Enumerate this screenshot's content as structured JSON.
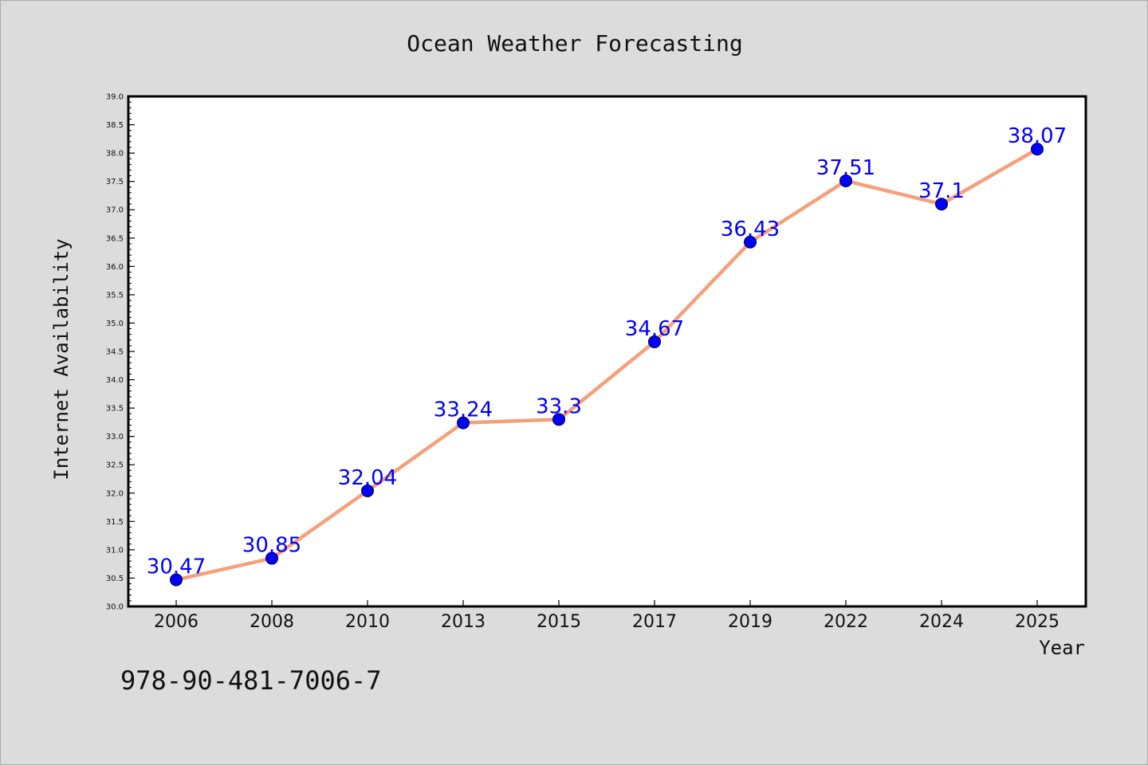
{
  "chart_data": {
    "type": "line",
    "title": "Ocean Weather Forecasting",
    "xlabel": "Year",
    "ylabel": "Internet Availability",
    "categories": [
      "2006",
      "2008",
      "2010",
      "2013",
      "2015",
      "2017",
      "2019",
      "2022",
      "2024",
      "2025"
    ],
    "series": [
      {
        "values": [
          30.47,
          30.85,
          32.04,
          33.24,
          33.3,
          34.67,
          36.43,
          37.51,
          37.1,
          38.07
        ],
        "line_color": "#f5a07a",
        "marker_color": "#0000ff"
      }
    ],
    "data_labels": [
      "30.47",
      "30.85",
      "32.04",
      "33.24",
      "33.3",
      "34.67",
      "36.43",
      "37.51",
      "37.1",
      "38.07"
    ],
    "ylim": [
      30.0,
      39.0
    ],
    "yticks": [
      "30.0",
      "30.5",
      "31.0",
      "31.5",
      "32.0",
      "32.5",
      "33.0",
      "33.5",
      "34.0",
      "34.5",
      "35.0",
      "35.5",
      "36.0",
      "36.5",
      "37.0",
      "37.5",
      "38.0",
      "38.5",
      "39.0"
    ],
    "grid": false,
    "legend": "none"
  },
  "footer": {
    "isbn": "978-90-481-7006-7"
  },
  "colors": {
    "background": "#dcdcdc",
    "plot_area": "#ffffff",
    "line": "#f5a07a",
    "marker": "#0000ff",
    "data_label": "#0000ff"
  }
}
